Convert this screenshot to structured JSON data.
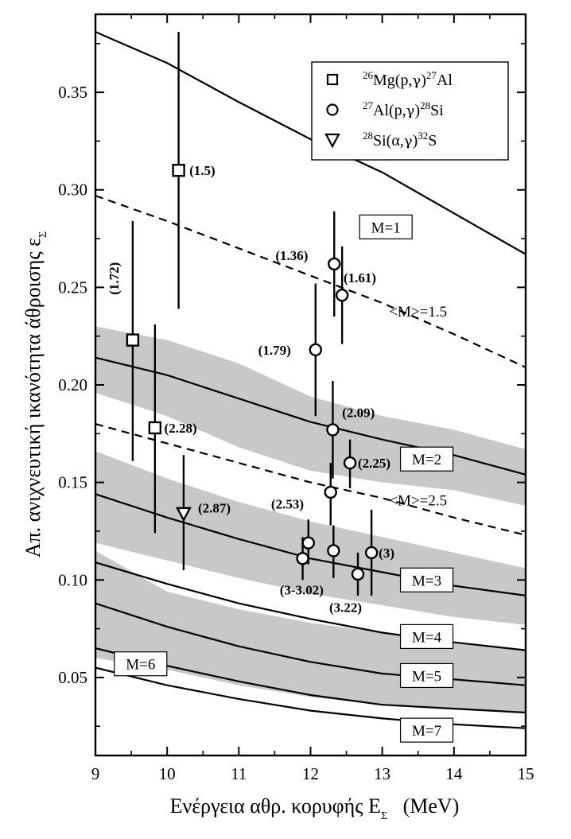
{
  "chart_data": {
    "type": "scatter",
    "xlabel": "Ενέργεια αθρ. κορυφής  E",
    "xlabel_sub": "Σ",
    "xlabel_unit": "(MeV)",
    "ylabel": "Απ. ανιχνευτική ικανότητα άθροισης  ε",
    "ylabel_sub": "Σ",
    "xlim": [
      9,
      15
    ],
    "ylim": [
      0.01,
      0.39
    ],
    "x_ticks": [
      9,
      10,
      11,
      12,
      13,
      14,
      15
    ],
    "x_tick_labels": [
      "9",
      "10",
      "11",
      "12",
      "13",
      "14",
      "15"
    ],
    "y_ticks": [
      0.05,
      0.1,
      0.15,
      0.2,
      0.25,
      0.3,
      0.35
    ],
    "y_tick_labels": [
      "0.05",
      "0.10",
      "0.15",
      "0.20",
      "0.25",
      "0.30",
      "0.35"
    ],
    "legend_position": "top-right",
    "legend": [
      {
        "marker": "square",
        "pre_sup": "26",
        "a": "Mg(p,",
        "g": "γ",
        "b": ")",
        "post_sup": "27",
        "c": "Al"
      },
      {
        "marker": "circle",
        "pre_sup": "27",
        "a": "Al(p,",
        "g": "γ",
        "b": ")",
        "post_sup": "28",
        "c": "Si"
      },
      {
        "marker": "triangle",
        "pre_sup": "28",
        "a": "Si(α,",
        "g": "γ",
        "b": ")",
        "post_sup": "32",
        "c": "S"
      }
    ],
    "bands": [
      {
        "name": "M=2 band",
        "x": [
          9,
          10,
          11,
          12,
          13,
          14,
          15
        ],
        "y_low": [
          0.196,
          0.184,
          0.168,
          0.156,
          0.15,
          0.146,
          0.138
        ],
        "y_high": [
          0.23,
          0.223,
          0.211,
          0.194,
          0.184,
          0.177,
          0.167
        ]
      },
      {
        "name": "M=3 band",
        "x": [
          9,
          10,
          11,
          12,
          13,
          14,
          15
        ],
        "y_low": [
          0.119,
          0.11,
          0.101,
          0.093,
          0.087,
          0.081,
          0.077
        ],
        "y_high": [
          0.166,
          0.152,
          0.14,
          0.13,
          0.122,
          0.114,
          0.106
        ]
      },
      {
        "name": "M=5 band",
        "x": [
          9,
          10,
          11,
          12,
          13,
          14,
          15
        ],
        "y_low": [
          0.06,
          0.054,
          0.046,
          0.04,
          0.036,
          0.034,
          0.032
        ],
        "y_high": [
          0.115,
          0.094,
          0.085,
          0.078,
          0.073,
          0.068,
          0.064
        ]
      }
    ],
    "curves": [
      {
        "label": "M=1",
        "style": "solid",
        "x": [
          9,
          10,
          11,
          12,
          13,
          14,
          15
        ],
        "y": [
          0.381,
          0.365,
          0.345,
          0.326,
          0.309,
          0.288,
          0.267
        ],
        "label_x": 13.05,
        "label_y": 0.281,
        "label_box": true
      },
      {
        "label": "<M>=1.5",
        "style": "dashed",
        "x": [
          9,
          10,
          11,
          12,
          13,
          14,
          15
        ],
        "y": [
          0.297,
          0.284,
          0.27,
          0.256,
          0.242,
          0.226,
          0.209
        ],
        "label_x": 13.5,
        "label_y": 0.238,
        "label_box": false
      },
      {
        "label": "M=2",
        "style": "solid",
        "x": [
          9,
          10,
          11,
          12,
          13,
          14,
          15
        ],
        "y": [
          0.214,
          0.205,
          0.193,
          0.181,
          0.172,
          0.164,
          0.154
        ],
        "label_x": 13.62,
        "label_y": 0.162,
        "label_box": true
      },
      {
        "label": "<M>=2.5",
        "style": "dashed",
        "x": [
          9,
          10,
          11,
          12,
          13,
          14,
          15
        ],
        "y": [
          0.18,
          0.17,
          0.16,
          0.15,
          0.142,
          0.132,
          0.123
        ],
        "label_x": 13.5,
        "label_y": 0.141,
        "label_box": false
      },
      {
        "label": "M=3",
        "style": "solid",
        "x": [
          9,
          10,
          11,
          12,
          13,
          14,
          15
        ],
        "y": [
          0.144,
          0.132,
          0.121,
          0.111,
          0.104,
          0.097,
          0.092
        ],
        "label_x": 13.62,
        "label_y": 0.1,
        "label_box": true
      },
      {
        "label": "M=4",
        "style": "solid",
        "x": [
          9,
          10,
          11,
          12,
          13,
          14,
          15
        ],
        "y": [
          0.109,
          0.098,
          0.088,
          0.08,
          0.073,
          0.068,
          0.064
        ],
        "label_x": 13.62,
        "label_y": 0.071,
        "label_box": true
      },
      {
        "label": "M=5",
        "style": "solid",
        "x": [
          9,
          10,
          11,
          12,
          13,
          14,
          15
        ],
        "y": [
          0.088,
          0.076,
          0.066,
          0.058,
          0.052,
          0.049,
          0.046
        ],
        "label_x": 13.62,
        "label_y": 0.051,
        "label_box": true
      },
      {
        "label": "M=6",
        "style": "solid",
        "x": [
          9,
          10,
          11,
          12,
          13,
          14,
          15
        ],
        "y": [
          0.065,
          0.056,
          0.048,
          0.041,
          0.036,
          0.034,
          0.032
        ],
        "label_x": 9.63,
        "label_y": 0.057,
        "label_box": true
      },
      {
        "label": "M=7",
        "style": "solid",
        "x": [
          9,
          10,
          11,
          12,
          13,
          14,
          15
        ],
        "y": [
          0.055,
          0.046,
          0.039,
          0.033,
          0.029,
          0.026,
          0.024
        ],
        "label_x": 13.62,
        "label_y": 0.023,
        "label_box": true
      }
    ],
    "series": [
      {
        "marker": "square",
        "points": [
          {
            "x": 10.16,
            "y": 0.31,
            "yerr_low": 0.239,
            "yerr_high": 0.381,
            "label": "(1.5)",
            "label_dx": 0.15,
            "label_dy": 0.0
          },
          {
            "x": 9.52,
            "y": 0.223,
            "yerr_low": 0.161,
            "yerr_high": 0.284,
            "label": "(1.72)",
            "label_dx": -0.2,
            "label_dy": 0.034,
            "label_rotate": true
          },
          {
            "x": 9.83,
            "y": 0.178,
            "yerr_low": 0.124,
            "yerr_high": 0.231,
            "label": "(2.28)",
            "label_dx": 0.13,
            "label_dy": 0.0
          }
        ]
      },
      {
        "marker": "circle",
        "points": [
          {
            "x": 12.33,
            "y": 0.262,
            "yerr_low": 0.235,
            "yerr_high": 0.289,
            "label": "(1.36)",
            "label_dx": -0.82,
            "label_dy": 0.0045
          },
          {
            "x": 12.44,
            "y": 0.246,
            "yerr_low": 0.221,
            "yerr_high": 0.271,
            "label": "(1.61)",
            "label_dx": 0.02,
            "label_dy": 0.009
          },
          {
            "x": 12.07,
            "y": 0.218,
            "yerr_low": 0.184,
            "yerr_high": 0.252,
            "label": "(1.79)",
            "label_dx": -0.8,
            "label_dy": 0.0
          },
          {
            "x": 12.31,
            "y": 0.177,
            "yerr_low": 0.152,
            "yerr_high": 0.202,
            "label": "(2.09)",
            "label_dx": 0.13,
            "label_dy": 0.009
          },
          {
            "x": 12.55,
            "y": 0.16,
            "yerr_low": 0.147,
            "yerr_high": 0.172,
            "label": "(2.25)",
            "label_dx": 0.11,
            "label_dy": 0.0
          },
          {
            "x": 12.28,
            "y": 0.145,
            "yerr_low": 0.128,
            "yerr_high": 0.16,
            "label": "(2.53)",
            "label_dx": -0.83,
            "label_dy": -0.006
          },
          {
            "x": 11.97,
            "y": 0.119,
            "yerr_low": 0.108,
            "yerr_high": 0.131,
            "label": null
          },
          {
            "x": 11.89,
            "y": 0.111,
            "yerr_low": 0.1,
            "yerr_high": 0.122,
            "label": "(3-3.02)",
            "label_dx": -0.32,
            "label_dy": -0.016
          },
          {
            "x": 12.32,
            "y": 0.115,
            "yerr_low": 0.101,
            "yerr_high": 0.128,
            "label": null
          },
          {
            "x": 12.85,
            "y": 0.114,
            "yerr_low": 0.092,
            "yerr_high": 0.136,
            "label": "(3)",
            "label_dx": 0.1,
            "label_dy": 0.0
          },
          {
            "x": 12.66,
            "y": 0.103,
            "yerr_low": 0.092,
            "yerr_high": 0.114,
            "label": "(3.22)",
            "label_dx": -0.4,
            "label_dy": -0.017
          }
        ]
      },
      {
        "marker": "triangle",
        "points": [
          {
            "x": 10.23,
            "y": 0.134,
            "yerr_low": 0.105,
            "yerr_high": 0.164,
            "label": "(2.87)",
            "label_dx": 0.2,
            "label_dy": 0.003
          }
        ]
      }
    ]
  }
}
